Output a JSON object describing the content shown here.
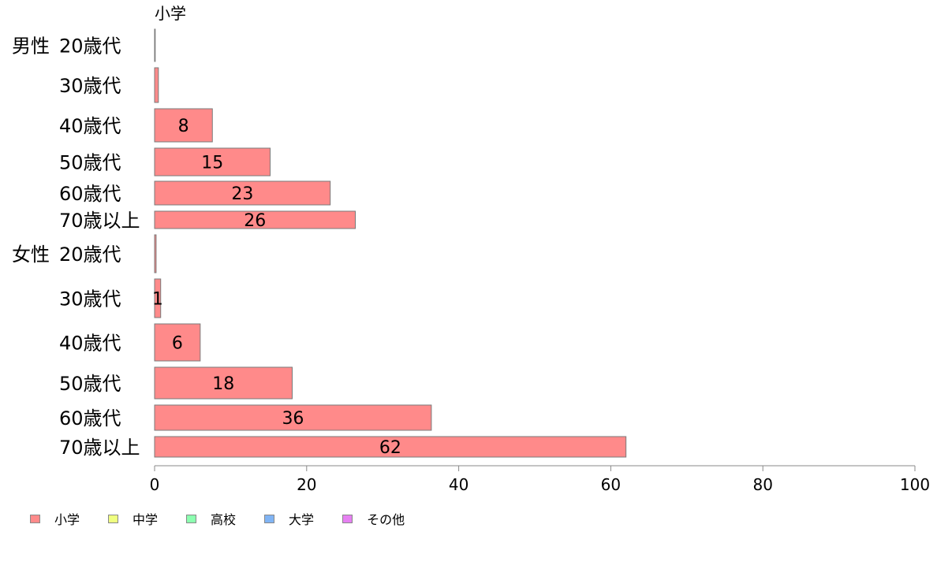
{
  "chart_data": {
    "type": "bar",
    "orientation": "horizontal",
    "column_title": "小学",
    "groups": [
      {
        "label": "男性",
        "categories": [
          "20歳代",
          "30歳代",
          "40歳代",
          "50歳代",
          "60歳代",
          "70歳以上"
        ]
      },
      {
        "label": "女性",
        "categories": [
          "20歳代",
          "30歳代",
          "40歳代",
          "50歳代",
          "60歳代",
          "70歳以上"
        ]
      }
    ],
    "series": [
      {
        "name": "小学",
        "color": "#ff8a8a",
        "values": [
          0,
          0.5,
          7.6,
          15.2,
          23.1,
          26.4,
          0.2,
          0.8,
          6.0,
          18.1,
          36.4,
          62.0
        ],
        "labels": [
          "",
          "",
          "8",
          "15",
          "23",
          "26",
          "",
          "1",
          "6",
          "18",
          "36",
          "62"
        ]
      }
    ],
    "xlim": [
      0,
      100
    ],
    "xticks": [
      0,
      20,
      40,
      60,
      80,
      100
    ],
    "legend": [
      {
        "name": "小学",
        "color": "#ff8a8a"
      },
      {
        "name": "中学",
        "color": "#efff80"
      },
      {
        "name": "高校",
        "color": "#8cffb0"
      },
      {
        "name": "大学",
        "color": "#80b4f4"
      },
      {
        "name": "その他",
        "color": "#e680f2"
      }
    ],
    "legend_position": "bottom-left",
    "grid": false
  }
}
